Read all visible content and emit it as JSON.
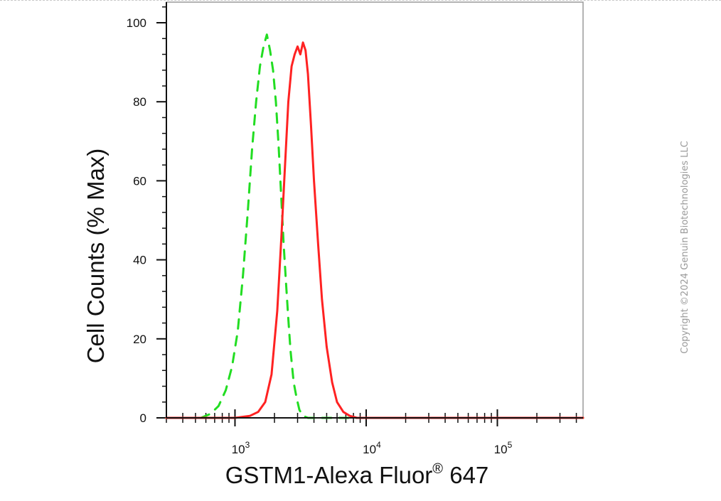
{
  "chart_data": {
    "type": "line",
    "title": "",
    "xlabel": "GSTM1-Alexa Fluor",
    "xlabel_superscript": "®",
    "xlabel_suffix": " 647",
    "ylabel": "Cell Counts (% Max)",
    "x_scale": "log",
    "xlim": [
      300,
      450000
    ],
    "ylim": [
      0,
      105
    ],
    "y_ticks": [
      0,
      20,
      40,
      60,
      80,
      100
    ],
    "y_tick_labels": [
      "0",
      "20",
      "40",
      "60",
      "80",
      "100"
    ],
    "x_ticks": [
      1000,
      10000,
      100000
    ],
    "x_tick_labels": [
      {
        "base": "10",
        "exp": "3"
      },
      {
        "base": "10",
        "exp": "4"
      },
      {
        "base": "10",
        "exp": "5"
      }
    ],
    "grid": false,
    "legend": "none",
    "series": [
      {
        "style": "dashed",
        "color": "#22dd22",
        "x": [
          300,
          550,
          650,
          750,
          850,
          950,
          1050,
          1150,
          1250,
          1350,
          1450,
          1550,
          1650,
          1750,
          1850,
          1950,
          2050,
          2150,
          2250,
          2350,
          2450,
          2550,
          2650,
          2800,
          2950,
          3100,
          3300,
          3600,
          5000,
          10000,
          50000,
          450000
        ],
        "y": [
          0,
          0,
          1,
          3,
          7,
          13,
          22,
          36,
          52,
          68,
          80,
          89,
          94,
          97,
          93,
          88,
          80,
          69,
          56,
          44,
          34,
          25,
          17,
          9,
          5,
          2,
          0.5,
          0,
          0,
          0,
          0,
          0
        ]
      },
      {
        "style": "solid",
        "color": "#ff2222",
        "x": [
          300,
          1000,
          1300,
          1500,
          1700,
          1900,
          2100,
          2250,
          2400,
          2550,
          2700,
          2850,
          3000,
          3150,
          3300,
          3450,
          3600,
          3800,
          4000,
          4300,
          4600,
          5000,
          5500,
          6000,
          6700,
          7500,
          8500,
          10000,
          50000,
          450000
        ],
        "y": [
          0,
          0,
          0.5,
          1.5,
          4,
          11,
          27,
          45,
          63,
          80,
          89,
          92,
          94,
          92,
          95,
          93,
          87,
          74,
          60,
          44,
          30,
          18,
          9,
          4,
          1.5,
          0.5,
          0,
          0,
          0,
          0
        ]
      }
    ]
  },
  "copyright": "Copyright ©2024 Genuin Biotechnologies LLC"
}
